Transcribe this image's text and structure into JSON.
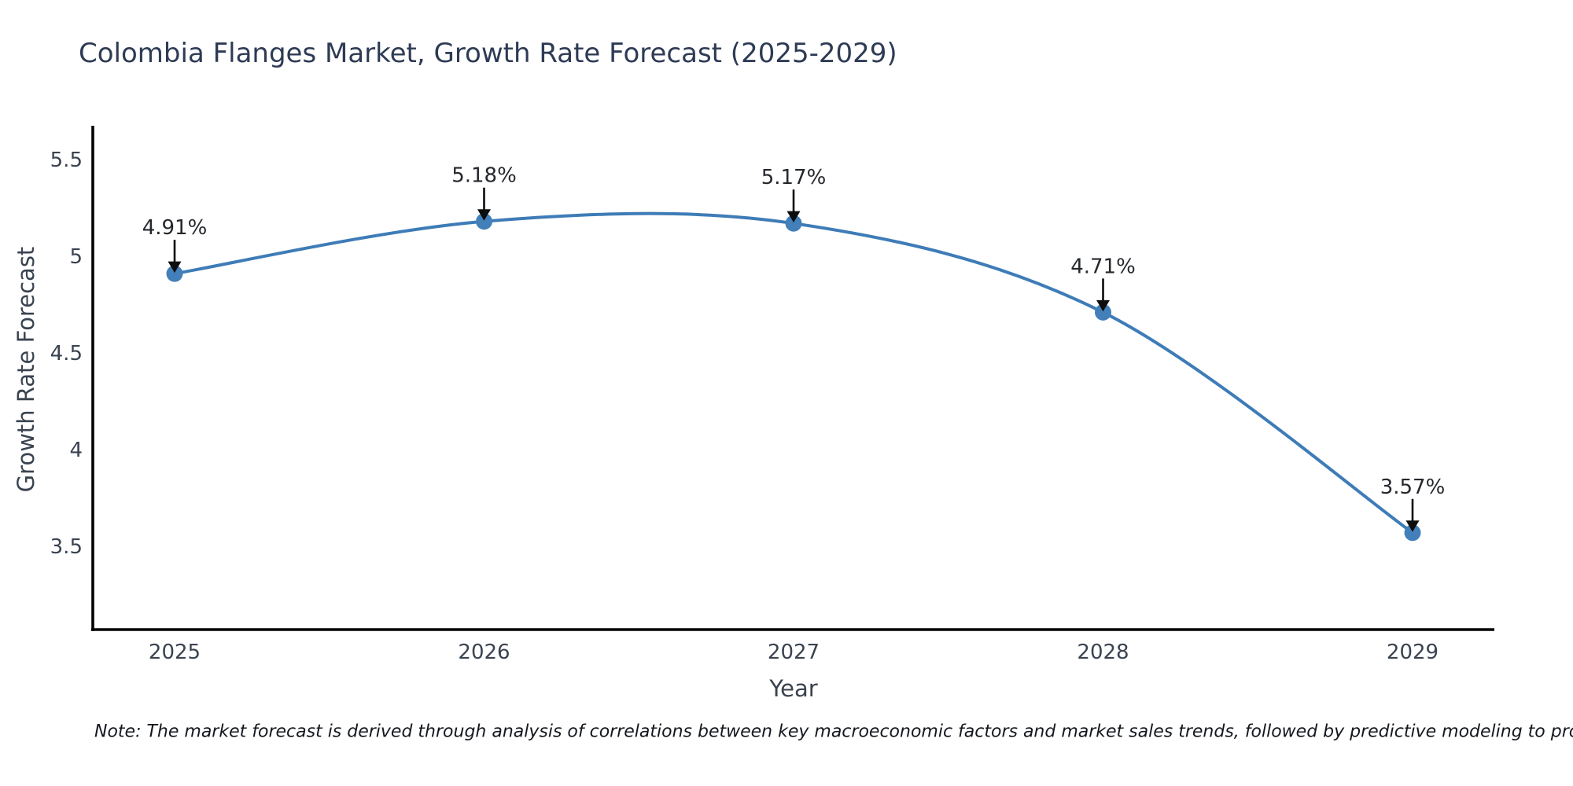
{
  "figure": {
    "footnote": "Note: The market forecast is derived through analysis of correlations between key macroeconomic factors and market sales trends, followed by predictive modeling to project future sales"
  },
  "chart_data": {
    "type": "line",
    "title": "Colombia Flanges Market, Growth Rate Forecast (2025-2029)",
    "xlabel": "Year",
    "ylabel": "Growth Rate Forecast",
    "categories": [
      "2025",
      "2026",
      "2027",
      "2028",
      "2029"
    ],
    "series": [
      {
        "name": "Growth Rate Forecast",
        "values": [
          4.91,
          5.18,
          5.17,
          4.71,
          3.57
        ]
      }
    ],
    "point_labels": [
      "4.91%",
      "5.18%",
      "5.17%",
      "4.71%",
      "3.57%"
    ],
    "yticks": [
      5.5,
      5.0,
      4.5,
      4.0,
      3.5
    ],
    "ytick_labels": [
      "5.5",
      "5",
      "4.5",
      "4",
      "3.5"
    ],
    "ylim": [
      3.05,
      5.68
    ],
    "grid": false,
    "legend": "none",
    "smooth": true,
    "annotation_style": "label-above-with-down-arrow",
    "colors": {
      "line": "#3e7cb7",
      "marker": "#4380ba",
      "axis": "#000000",
      "title": "#2e3b55",
      "tick": "#3a4350",
      "annotation": "#24272c",
      "arrow": "#0d0d0d",
      "note": "#14181e"
    }
  }
}
